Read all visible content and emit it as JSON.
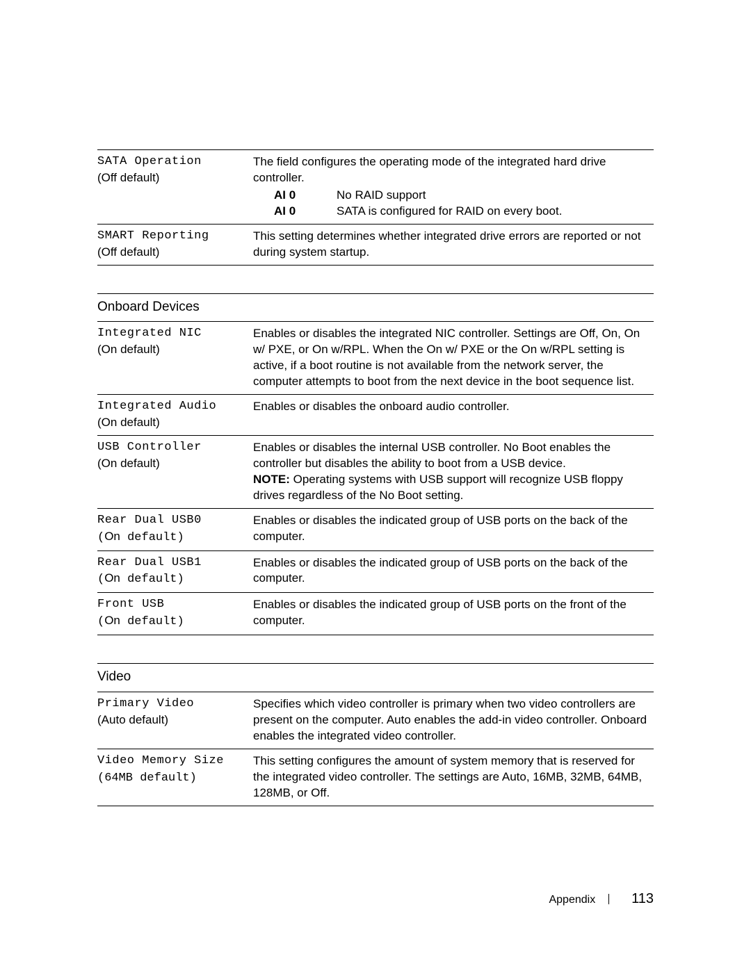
{
  "drives": {
    "rows": [
      {
        "name": "SATA Operation",
        "default_prefix": "(",
        "default_value": "Off",
        "default_suffix": " default)",
        "desc_intro": "The field configures the operating mode of the integrated hard drive controller.",
        "options": [
          {
            "key": "AI 0",
            "val": "No RAID support"
          },
          {
            "key": "AI 0",
            "val": "SATA is configured for RAID on every boot."
          }
        ]
      },
      {
        "name": "SMART Reporting",
        "default_prefix": "(",
        "default_value": "Off",
        "default_suffix": " default)",
        "desc": "This setting determines whether integrated drive errors are reported or not during system startup."
      }
    ]
  },
  "onboard": {
    "header": "Onboard Devices",
    "rows": [
      {
        "name": "Integrated NIC",
        "default_prefix": "(",
        "default_value": "On",
        "default_suffix": " default)",
        "desc": "Enables or disables the integrated NIC controller. Settings are Off, On, On w/ PXE, or On w/RPL. When the On w/ PXE or the On w/RPL setting is active, if a boot routine is not available from the network server, the computer attempts to boot from the next device in the boot sequence list."
      },
      {
        "name": "Integrated Audio",
        "default_prefix": "(",
        "default_value": "On",
        "default_suffix": " default)",
        "desc": "Enables or disables the onboard audio controller."
      },
      {
        "name": "USB Controller",
        "default_prefix": "(",
        "default_value": "On",
        "default_suffix": " default)",
        "desc_line1": "Enables or disables the internal USB controller. No Boot enables the controller but disables the ability to boot from a USB device.",
        "note_label": "NOTE:",
        "note_text": " Operating systems with USB support will recognize USB floppy drives regardless of the No Boot setting."
      },
      {
        "name": "Rear Dual USB0",
        "default_prefix": "(",
        "default_value_sans": "On",
        "default_suffix_mono": " default)",
        "desc": "Enables or disables the indicated group of USB ports on the back of the computer."
      },
      {
        "name": "Rear Dual USB1",
        "default_prefix": "(",
        "default_value_sans": "On",
        "default_suffix_mono": " default)",
        "desc": "Enables or disables the indicated group of USB ports on the back of the computer."
      },
      {
        "name": "Front USB",
        "default_prefix": "(",
        "default_value_sans": "On",
        "default_suffix_mono": " default)",
        "desc": "Enables or disables the indicated group of USB ports on the front of the computer."
      }
    ]
  },
  "video": {
    "header": "Video",
    "rows": [
      {
        "name": "Primary Video",
        "default_prefix": "(",
        "default_value": "Auto",
        "default_suffix": " default)",
        "desc": "Specifies which video controller is primary when two video controllers are present on the computer. Auto enables the add-in video controller. Onboard enables the integrated video controller."
      },
      {
        "name": "Video Memory Size",
        "default_prefix": "(",
        "default_value_mono": "64MB",
        "default_suffix_mono": " default)",
        "desc": "This setting configures the amount of system memory that is reserved for the integrated video controller. The settings are Auto, 16MB, 32MB, 64MB, 128MB, or Off."
      }
    ]
  },
  "footer": {
    "section": "Appendix",
    "page": "113"
  }
}
